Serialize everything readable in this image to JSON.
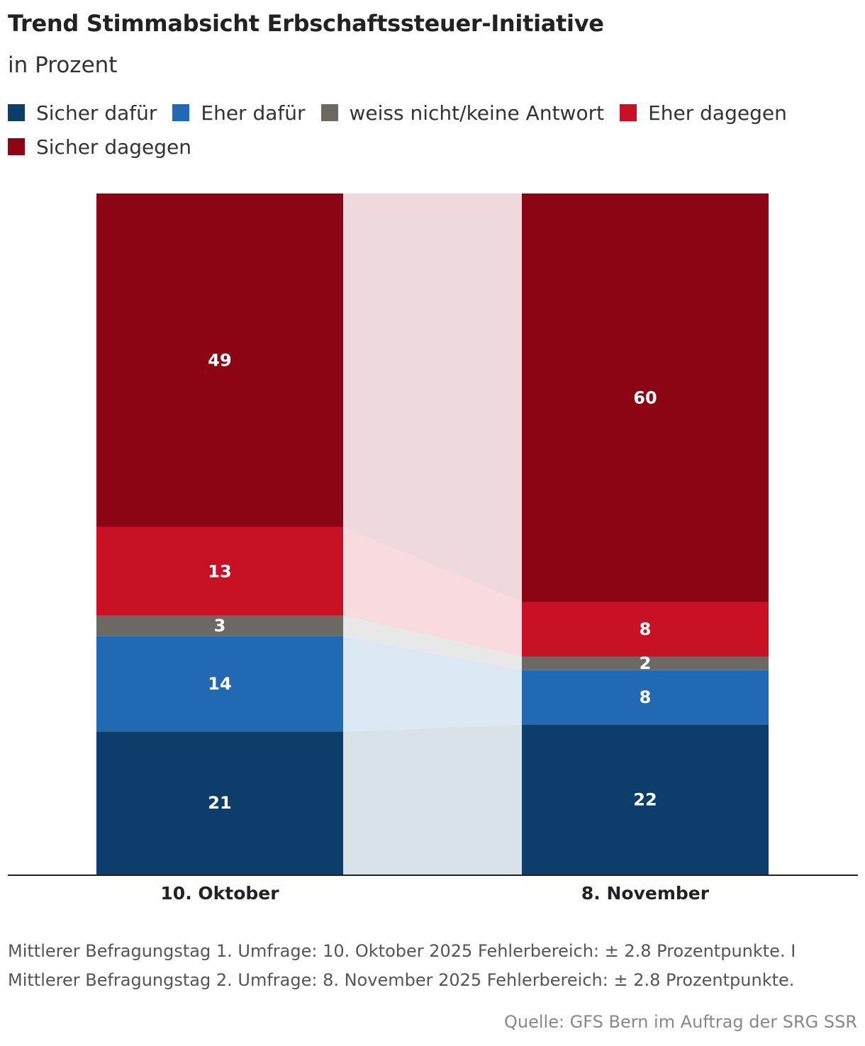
{
  "chart_data": {
    "type": "bar",
    "stacked": true,
    "title": "Trend Stimmabsicht Erbschaftssteuer-Initiative",
    "subtitle": "in Prozent",
    "categories": [
      "10. Oktober",
      "8. November"
    ],
    "series": [
      {
        "name": "Sicher dafür",
        "color": "#0d3e6b",
        "values": [
          21,
          22
        ]
      },
      {
        "name": "Eher dafür",
        "color": "#216ab3",
        "values": [
          14,
          8
        ]
      },
      {
        "name": "weiss nicht/keine Antwort",
        "color": "#6c6963",
        "values": [
          3,
          2
        ]
      },
      {
        "name": "Eher dagegen",
        "color": "#c91126",
        "values": [
          13,
          8
        ]
      },
      {
        "name": "Sicher dagegen",
        "color": "#8b0515",
        "values": [
          49,
          60
        ]
      }
    ],
    "connector_colors": [
      "#d9e1e9",
      "#dce9f5",
      "#e8e8e8",
      "#f9dade",
      "#eedadd"
    ],
    "ylim": [
      0,
      100
    ],
    "legend": "top-left",
    "grid": false
  },
  "note": "Mittlerer Befragungstag 1. Umfrage: 10. Oktober 2025 Fehlerbereich: ± 2.8 Prozentpunkte. I Mittlerer Befragungstag 2. Umfrage: 8. November 2025 Fehlerbereich: ± 2.8 Prozentpunkte.",
  "source": "Quelle: GFS Bern im Auftrag der SRG SSR"
}
